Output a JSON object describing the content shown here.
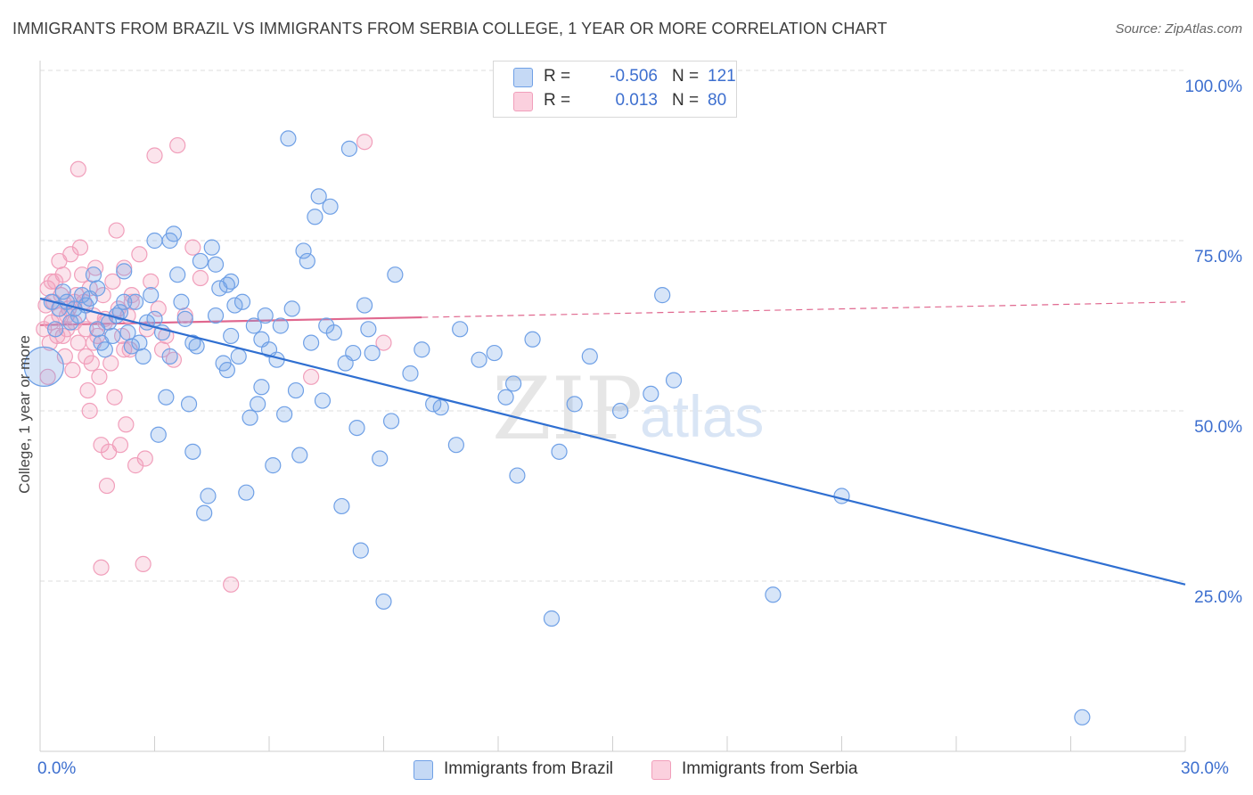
{
  "header": {
    "title": "IMMIGRANTS FROM BRAZIL VS IMMIGRANTS FROM SERBIA COLLEGE, 1 YEAR OR MORE CORRELATION CHART",
    "source": "Source: ZipAtlas.com"
  },
  "legend": {
    "r_label": "R =",
    "n_label": "N =",
    "brazil": {
      "r": "-0.506",
      "n": "121"
    },
    "serbia": {
      "r": "0.013",
      "n": "80"
    }
  },
  "watermark": {
    "zip": "ZIP",
    "atlas": "atlas"
  },
  "chart_data": {
    "type": "scatter",
    "ylabel": "College, 1 year or more",
    "xlim": [
      0,
      30
    ],
    "ylim": [
      0,
      100
    ],
    "x_tick_labels": [
      "0.0%",
      "30.0%"
    ],
    "y_tick_labels": [
      "100.0%",
      "75.0%",
      "50.0%",
      "25.0%"
    ],
    "y_tick_values": [
      100,
      75,
      50,
      25
    ],
    "grid": true,
    "legend_position": "top-center",
    "colors": {
      "brazil": "#6fa0e6",
      "brazil_line": "#2f6fd1",
      "serbia": "#f19fbb",
      "serbia_line": "#e0688f"
    },
    "series": [
      {
        "name": "Immigrants from Brazil",
        "trend": {
          "x": [
            0,
            30
          ],
          "y": [
            66.5,
            24.5
          ],
          "style": "solid"
        },
        "points": [
          [
            0.1,
            56.5
          ],
          [
            0.3,
            66
          ],
          [
            0.4,
            62
          ],
          [
            0.5,
            65
          ],
          [
            0.6,
            67.5
          ],
          [
            0.7,
            66
          ],
          [
            0.8,
            63
          ],
          [
            1.0,
            64
          ],
          [
            1.1,
            67
          ],
          [
            1.2,
            65.5
          ],
          [
            1.4,
            70
          ],
          [
            1.5,
            62
          ],
          [
            1.6,
            60
          ],
          [
            1.7,
            59
          ],
          [
            1.8,
            63
          ],
          [
            2.0,
            64
          ],
          [
            2.2,
            70.5
          ],
          [
            2.3,
            61.5
          ],
          [
            2.5,
            66
          ],
          [
            2.6,
            60
          ],
          [
            2.8,
            63
          ],
          [
            2.9,
            67
          ],
          [
            3.0,
            75
          ],
          [
            3.1,
            46.5
          ],
          [
            3.2,
            61.5
          ],
          [
            3.3,
            52
          ],
          [
            3.4,
            75
          ],
          [
            3.5,
            76
          ],
          [
            3.6,
            70
          ],
          [
            3.8,
            63.5
          ],
          [
            3.9,
            51
          ],
          [
            4.0,
            44
          ],
          [
            4.1,
            59.5
          ],
          [
            4.2,
            72
          ],
          [
            4.3,
            35
          ],
          [
            4.4,
            37.5
          ],
          [
            4.5,
            74
          ],
          [
            4.6,
            71.5
          ],
          [
            4.7,
            68
          ],
          [
            4.8,
            57
          ],
          [
            4.9,
            68.5
          ],
          [
            5.0,
            69
          ],
          [
            5.1,
            65.5
          ],
          [
            5.2,
            58
          ],
          [
            5.3,
            66
          ],
          [
            5.4,
            38
          ],
          [
            5.5,
            49
          ],
          [
            5.6,
            62.5
          ],
          [
            5.7,
            51
          ],
          [
            5.8,
            60.5
          ],
          [
            5.9,
            64
          ],
          [
            6.0,
            59
          ],
          [
            6.1,
            42
          ],
          [
            6.2,
            57.5
          ],
          [
            6.3,
            62.5
          ],
          [
            6.5,
            90
          ],
          [
            6.7,
            53
          ],
          [
            6.8,
            43.5
          ],
          [
            6.9,
            73.5
          ],
          [
            7.0,
            72
          ],
          [
            7.2,
            78.5
          ],
          [
            7.3,
            81.5
          ],
          [
            7.4,
            51.5
          ],
          [
            7.5,
            62.5
          ],
          [
            7.6,
            80
          ],
          [
            7.7,
            61.5
          ],
          [
            7.9,
            36
          ],
          [
            8.0,
            57
          ],
          [
            8.1,
            88.5
          ],
          [
            8.2,
            58.5
          ],
          [
            8.3,
            47.5
          ],
          [
            8.4,
            29.5
          ],
          [
            8.5,
            65.5
          ],
          [
            8.7,
            58.5
          ],
          [
            8.9,
            43
          ],
          [
            9.0,
            22
          ],
          [
            9.2,
            48.5
          ],
          [
            9.3,
            70
          ],
          [
            9.7,
            55.5
          ],
          [
            10.3,
            51
          ],
          [
            10.5,
            50.5
          ],
          [
            10.9,
            45
          ],
          [
            11.0,
            62
          ],
          [
            11.5,
            57.5
          ],
          [
            11.9,
            58.5
          ],
          [
            12.2,
            52
          ],
          [
            12.4,
            54
          ],
          [
            12.5,
            40.5
          ],
          [
            12.9,
            60.5
          ],
          [
            13.4,
            19.5
          ],
          [
            13.6,
            44
          ],
          [
            14.0,
            51
          ],
          [
            14.4,
            58
          ],
          [
            15.2,
            50
          ],
          [
            16.0,
            52.5
          ],
          [
            16.3,
            67
          ],
          [
            16.6,
            54.5
          ],
          [
            19.2,
            23
          ],
          [
            21.0,
            37.5
          ],
          [
            27.3,
            5
          ],
          [
            1.3,
            66.5
          ],
          [
            2.1,
            64.5
          ],
          [
            2.4,
            59.5
          ],
          [
            3.0,
            63.5
          ],
          [
            3.7,
            66
          ],
          [
            4.6,
            64
          ],
          [
            5.0,
            61
          ],
          [
            6.6,
            65
          ],
          [
            7.1,
            60
          ],
          [
            8.6,
            62
          ],
          [
            1.9,
            61
          ],
          [
            2.7,
            58
          ],
          [
            4.0,
            60
          ],
          [
            5.8,
            53.5
          ],
          [
            0.9,
            65
          ],
          [
            1.5,
            68
          ],
          [
            2.2,
            66
          ],
          [
            3.4,
            58
          ],
          [
            4.9,
            56
          ],
          [
            6.4,
            49.5
          ],
          [
            10.0,
            59
          ]
        ]
      },
      {
        "name": "Immigrants from Serbia",
        "trend": {
          "x": [
            0,
            30
          ],
          "y": [
            62.6,
            66.0
          ],
          "solid_until": 10.0
        },
        "points": [
          [
            0.1,
            62
          ],
          [
            0.15,
            65.5
          ],
          [
            0.2,
            68
          ],
          [
            0.25,
            60
          ],
          [
            0.3,
            63
          ],
          [
            0.35,
            66
          ],
          [
            0.4,
            69
          ],
          [
            0.45,
            61
          ],
          [
            0.5,
            64
          ],
          [
            0.55,
            67
          ],
          [
            0.6,
            70
          ],
          [
            0.65,
            58
          ],
          [
            0.7,
            62
          ],
          [
            0.75,
            65
          ],
          [
            0.8,
            73
          ],
          [
            0.85,
            56
          ],
          [
            0.9,
            63
          ],
          [
            0.95,
            67
          ],
          [
            1.0,
            60
          ],
          [
            1.05,
            74
          ],
          [
            1.1,
            70
          ],
          [
            1.15,
            66
          ],
          [
            1.2,
            62
          ],
          [
            1.25,
            53
          ],
          [
            1.3,
            68
          ],
          [
            1.35,
            57
          ],
          [
            1.4,
            64
          ],
          [
            1.45,
            71
          ],
          [
            1.5,
            61
          ],
          [
            1.55,
            55
          ],
          [
            1.6,
            45
          ],
          [
            1.65,
            67
          ],
          [
            1.7,
            63
          ],
          [
            1.75,
            39
          ],
          [
            1.8,
            44
          ],
          [
            1.85,
            57
          ],
          [
            1.9,
            69
          ],
          [
            1.95,
            52
          ],
          [
            2.0,
            76.5
          ],
          [
            2.05,
            65
          ],
          [
            2.1,
            45
          ],
          [
            2.15,
            61
          ],
          [
            2.2,
            71
          ],
          [
            2.25,
            48
          ],
          [
            2.3,
            64
          ],
          [
            2.35,
            59
          ],
          [
            2.4,
            67
          ],
          [
            2.5,
            42
          ],
          [
            2.6,
            73
          ],
          [
            2.7,
            27.5
          ],
          [
            2.75,
            43
          ],
          [
            2.8,
            62
          ],
          [
            2.9,
            69
          ],
          [
            3.0,
            87.5
          ],
          [
            3.1,
            65
          ],
          [
            3.2,
            59
          ],
          [
            3.3,
            61
          ],
          [
            3.5,
            57.5
          ],
          [
            3.6,
            89
          ],
          [
            3.8,
            64
          ],
          [
            4.0,
            74
          ],
          [
            4.2,
            69.5
          ],
          [
            5.0,
            24.5
          ],
          [
            7.1,
            55
          ],
          [
            8.5,
            89.5
          ],
          [
            9.0,
            60
          ],
          [
            0.3,
            69
          ],
          [
            0.7,
            64
          ],
          [
            1.0,
            85.5
          ],
          [
            1.3,
            50
          ],
          [
            1.6,
            27
          ],
          [
            2.2,
            59
          ],
          [
            0.5,
            72
          ],
          [
            0.9,
            66
          ],
          [
            1.2,
            58
          ],
          [
            1.4,
            60
          ],
          [
            1.7,
            63.5
          ],
          [
            2.4,
            66
          ],
          [
            0.2,
            55
          ],
          [
            0.6,
            61
          ]
        ]
      }
    ]
  },
  "bottom_legend": {
    "brazil_label": "Immigrants from Brazil",
    "serbia_label": "Immigrants from Serbia"
  }
}
